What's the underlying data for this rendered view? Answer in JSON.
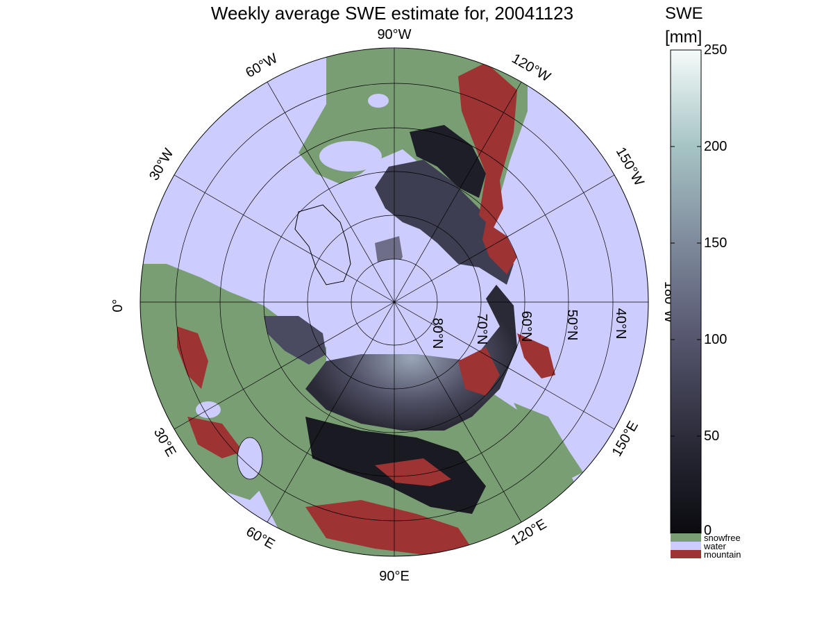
{
  "title": "Weekly average SWE estimate for, 20041123",
  "colorbar": {
    "title_line1": "SWE",
    "title_line2": "[mm]",
    "ticks": [
      "250",
      "200",
      "150",
      "100",
      "50",
      "0"
    ],
    "tick_values": [
      250,
      200,
      150,
      100,
      50,
      0
    ],
    "range": [
      0,
      250
    ]
  },
  "legend": [
    {
      "label": "snowfree",
      "color": "#7a9e74"
    },
    {
      "label": "water",
      "color": "#ccccff"
    },
    {
      "label": "mountain",
      "color": "#9e3333"
    }
  ],
  "longitude_labels": {
    "lon_90w": "90°W",
    "lon_120w": "120°W",
    "lon_150w": "150°W",
    "lon_180w": "180°W",
    "lon_150e": "150°E",
    "lon_120e": "120°E",
    "lon_90e": "90°E",
    "lon_60e": "60°E",
    "lon_30e": "30°E",
    "lon_0": "0°",
    "lon_30w": "30°W",
    "lon_60w": "60°W"
  },
  "latitude_labels": [
    "80°N",
    "70°N",
    "60°N",
    "50°N",
    "40°N"
  ],
  "colors": {
    "water": "#ccccff",
    "snowfree": "#7a9e74",
    "mountain": "#9e3333",
    "snow_low": "#0a0a0f",
    "snow_high": "#f5fafa"
  }
}
